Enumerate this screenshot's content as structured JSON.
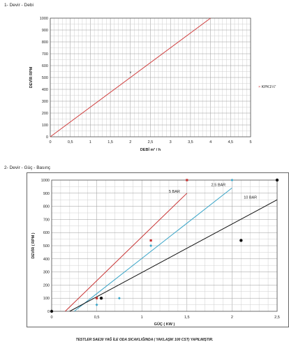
{
  "section1": {
    "title": "1- Devir - Debi"
  },
  "section2": {
    "title": "2- Devir - Güç - Basınç"
  },
  "footnote": "TESTLER SAE30 YAĞ İLE ODA SICAKLIĞINDA ( YAKLAŞIK 100 CST) YAPILMIŞTIR.",
  "chart_data": [
    {
      "type": "line",
      "title": "",
      "xlabel": "DEBİ m³ / h",
      "ylabel": "DEVİR RPM",
      "xlim": [
        0,
        5
      ],
      "ylim": [
        0,
        1000
      ],
      "xticks": [
        "0",
        "0,5",
        "1",
        "1,5",
        "2",
        "2,5",
        "3",
        "3,5",
        "4",
        "4,5",
        "5"
      ],
      "yticks": [
        "0",
        "100",
        "200",
        "300",
        "400",
        "500",
        "600",
        "700",
        "800",
        "900",
        "1000"
      ],
      "grid": true,
      "line_color": "#d04040",
      "series": [
        {
          "name": "KPK1¼\"",
          "x": [
            0,
            4
          ],
          "y": [
            0,
            1000
          ]
        }
      ],
      "markers": [
        {
          "x": 2.0,
          "y": 545,
          "label": "×"
        }
      ],
      "legend": {
        "position": "right",
        "marker": "×",
        "label": "KPK1¼\""
      }
    },
    {
      "type": "scatter",
      "title": "",
      "xlabel": "GÜÇ ( KW )",
      "ylabel": "DEVİR ( RPM )",
      "xlim": [
        0,
        2.5
      ],
      "ylim": [
        0,
        1000
      ],
      "xticks": [
        "0",
        "0,5",
        "1",
        "1,5",
        "2",
        "2,5"
      ],
      "yticks": [
        "0",
        "100",
        "200",
        "300",
        "400",
        "500",
        "600",
        "700",
        "800",
        "900",
        "1000"
      ],
      "grid": true,
      "lines": [
        {
          "name": "5 BAR",
          "color": "#c83232",
          "x": [
            0.15,
            1.5
          ],
          "y": [
            0,
            900
          ]
        },
        {
          "name": "2,5 BAR",
          "color": "#3aa5c8",
          "x": [
            0.25,
            2.0
          ],
          "y": [
            0,
            940
          ]
        },
        {
          "name": "10 BAR",
          "color": "#111111",
          "x": [
            0.2,
            2.5
          ],
          "y": [
            0,
            850
          ]
        }
      ],
      "points": [
        {
          "series": "5 BAR",
          "color": "#c83232",
          "shape": "square",
          "x": [
            0.5,
            1.1,
            1.5
          ],
          "y": [
            100,
            540,
            1000
          ]
        },
        {
          "series": "2,5 BAR",
          "color": "#3aa5c8",
          "shape": "diamond",
          "x": [
            0.5,
            0.75,
            1.1,
            2.0
          ],
          "y": [
            50,
            100,
            500,
            1000
          ]
        },
        {
          "series": "10 BAR",
          "color": "#111111",
          "shape": "circle",
          "x": [
            0,
            0.55,
            2.1,
            2.5
          ],
          "y": [
            0,
            100,
            540,
            1000
          ]
        }
      ]
    }
  ]
}
